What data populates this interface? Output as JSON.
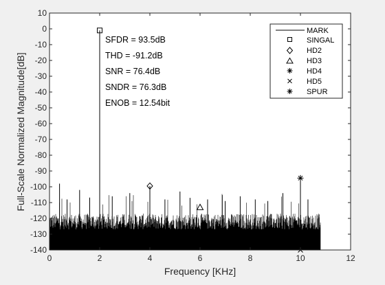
{
  "chart_data": {
    "type": "line",
    "xlabel": "Frequency [KHz]",
    "ylabel": "Full-Scale Normalized Magnitude[dB]",
    "xlim": [
      0,
      12
    ],
    "ylim": [
      -140,
      10
    ],
    "xticks": [
      "0",
      "2",
      "4",
      "6",
      "8",
      "10",
      "12"
    ],
    "yticks": [
      "10",
      "0",
      "-10",
      "-20",
      "-30",
      "-40",
      "-50",
      "-60",
      "-70",
      "-80",
      "-90",
      "-100",
      "-110",
      "-120",
      "-130",
      "-140"
    ],
    "grid": false,
    "legend_position": "top-right",
    "noise_floor": {
      "x_range": [
        0,
        10.8
      ],
      "typical_top": -122,
      "typical_bottom": -140,
      "occasional_spur_peak": -108
    },
    "series": [
      {
        "name": "MARK",
        "style": "line",
        "x": [
          0.4,
          0.7,
          1.2,
          1.6,
          2.0,
          2.5,
          3.2,
          4.0,
          4.6,
          5.2,
          5.6,
          6.3,
          7.0,
          7.6,
          8.2,
          8.7,
          9.3,
          10.0,
          10.3
        ],
        "y": [
          -98,
          -108,
          -102,
          -107,
          -1,
          -106,
          -104,
          -99.5,
          -108,
          -103,
          -107,
          -108,
          -109,
          -106,
          -108,
          -109,
          -104,
          -94.5,
          -108
        ]
      },
      {
        "name": "SINGAL",
        "marker": "square",
        "x": [
          2.0
        ],
        "y": [
          -1
        ]
      },
      {
        "name": "HD2",
        "marker": "diamond",
        "x": [
          4.0
        ],
        "y": [
          -99.5
        ]
      },
      {
        "name": "HD3",
        "marker": "triangle",
        "x": [
          6.0
        ],
        "y": [
          -113
        ]
      },
      {
        "name": "HD4",
        "marker": "asterisk",
        "x": [
          8.0
        ],
        "y": [
          -136
        ]
      },
      {
        "name": "HD5",
        "marker": "cross",
        "x": [
          10.0
        ],
        "y": [
          -140
        ]
      },
      {
        "name": "SPUR",
        "marker": "asterisk",
        "x": [
          10.0
        ],
        "y": [
          -94.5
        ]
      }
    ],
    "annotations": [
      "SFDR = 93.5dB",
      "THD = -91.2dB",
      "SNR = 76.4dB",
      "SNDR = 76.3dB",
      "ENOB = 12.54bit"
    ]
  }
}
